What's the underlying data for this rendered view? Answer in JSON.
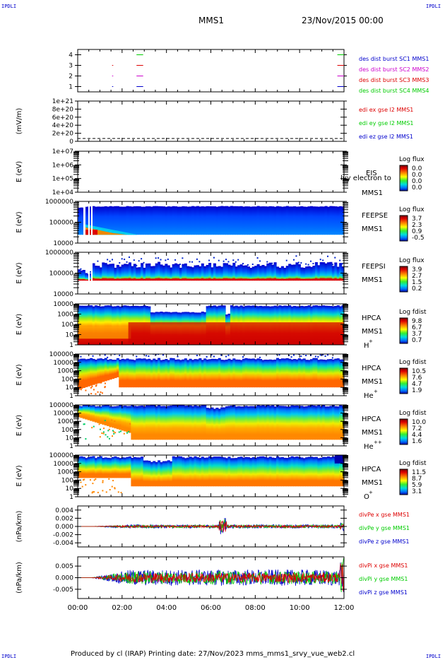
{
  "header": {
    "corner_tl": "IPDLI",
    "corner_tr": "IPDLI",
    "corner_bl": "IPDLI",
    "corner_br": "IPDLI",
    "spacecraft": "MMS1",
    "datetime": "23/Nov/2015 00:00"
  },
  "footer": {
    "text": "Produced by cl (IRAP)   Printing date: 27/Nov/2023   mms_mms1_srvy_vue_web2.cl"
  },
  "colors": {
    "red": "#dd0000",
    "green": "#00cc00",
    "blue": "#0000cc",
    "magenta": "#cc00cc"
  },
  "chart_data": [
    {
      "type": "line",
      "panel": "burst",
      "ylim": [
        0.5,
        4.5
      ],
      "yticks": [
        "1",
        "2",
        "3",
        "4"
      ],
      "legend": [
        {
          "label": "des dist burst SC1 MMS1",
          "color": "#0000cc"
        },
        {
          "label": "des dist burst SC2 MMS2",
          "color": "#cc00cc"
        },
        {
          "label": "des dist burst SC3 MMS3",
          "color": "#dd0000"
        },
        {
          "label": "des dist burst SC4 MMS4",
          "color": "#00cc00"
        }
      ],
      "series": [
        {
          "sc": 1,
          "segments": [
            [
              1.55,
              1.6
            ],
            [
              2.65,
              2.95
            ],
            [
              11.7,
              12.0
            ]
          ]
        },
        {
          "sc": 2,
          "segments": [
            [
              1.55,
              1.6
            ],
            [
              2.65,
              2.95
            ],
            [
              11.7,
              12.0
            ]
          ]
        },
        {
          "sc": 3,
          "segments": [
            [
              1.55,
              1.6
            ],
            [
              2.65,
              2.95
            ],
            [
              11.7,
              12.0
            ]
          ]
        },
        {
          "sc": 4,
          "segments": [
            [
              2.65,
              2.95
            ],
            [
              11.7,
              12.0
            ]
          ]
        }
      ]
    },
    {
      "type": "line",
      "panel": "edi",
      "ylabel": "(mV/m)",
      "ylim": [
        0,
        1e+21
      ],
      "yticks": [
        "0",
        "2e+20",
        "4e+20",
        "6e+20",
        "8e+20",
        "1e+21"
      ],
      "legend": [
        {
          "label": "edi ex gse l2 MMS1",
          "color": "#dd0000"
        },
        {
          "label": "edi ey gse l2 MMS1",
          "color": "#00cc00"
        },
        {
          "label": "edi ez gse l2 MMS1",
          "color": "#0000cc"
        }
      ]
    },
    {
      "type": "heatmap",
      "panel": "eis",
      "ylabel": "E (eV)",
      "yscale": "log",
      "ylim": [
        10000.0,
        10000000.0
      ],
      "yticks": [
        "1e+04",
        "1e+05",
        "1e+06",
        "1e+07"
      ],
      "labels": [
        "EIS",
        "MMS1"
      ],
      "overlay": "lvy electron to",
      "colorbar": {
        "title": "Log flux",
        "ticks": [
          "0.0",
          "0.0",
          "0.0",
          "0.0"
        ]
      }
    },
    {
      "type": "heatmap",
      "panel": "feepse",
      "ylabel": "E (eV)",
      "yscale": "log",
      "ylim": [
        10000.0,
        1000000.0
      ],
      "yticks": [
        "10000",
        "100000",
        "1000000"
      ],
      "labels": [
        "FEEPSE",
        "MMS1"
      ],
      "colorbar": {
        "title": "Log flux",
        "ticks": [
          "3.7",
          "2.3",
          "0.9",
          "-0.5"
        ]
      }
    },
    {
      "type": "heatmap",
      "panel": "feepsi",
      "ylabel": "E (eV)",
      "yscale": "log",
      "ylim": [
        10000.0,
        1000000.0
      ],
      "yticks": [
        "10000",
        "100000",
        "1000000"
      ],
      "labels": [
        "FEEPSI",
        "MMS1"
      ],
      "colorbar": {
        "title": "Log flux",
        "ticks": [
          "3.9",
          "2.7",
          "1.5",
          "0.2"
        ]
      }
    },
    {
      "type": "heatmap",
      "panel": "hpca_h",
      "ylabel": "E (eV)",
      "yscale": "log",
      "ylim": [
        1,
        10000.0
      ],
      "yticks": [
        "1",
        "10",
        "100",
        "1000",
        "10000"
      ],
      "labels": [
        "HPCA",
        "MMS1"
      ],
      "species": "H",
      "charge": "+",
      "colorbar": {
        "title": "Log fdist",
        "ticks": [
          "9.8",
          "6.7",
          "3.7",
          "0.7"
        ]
      }
    },
    {
      "type": "heatmap",
      "panel": "hpca_he1",
      "ylabel": "E (eV)",
      "yscale": "log",
      "ylim": [
        1,
        100000.0
      ],
      "yticks": [
        "1",
        "10",
        "100",
        "1000",
        "10000",
        "100000"
      ],
      "labels": [
        "HPCA",
        "MMS1"
      ],
      "species": "He",
      "charge": "+",
      "colorbar": {
        "title": "Log fdist",
        "ticks": [
          "10.5",
          "7.6",
          "4.7",
          "1.9"
        ]
      }
    },
    {
      "type": "heatmap",
      "panel": "hpca_he2",
      "ylabel": "E (eV)",
      "yscale": "log",
      "ylim": [
        1,
        100000.0
      ],
      "yticks": [
        "1",
        "10",
        "100",
        "1000",
        "10000",
        "100000"
      ],
      "labels": [
        "HPCA",
        "MMS1"
      ],
      "species": "He",
      "charge": "++",
      "colorbar": {
        "title": "Log fdist",
        "ticks": [
          "10.0",
          "7.2",
          "4.4",
          "1.6"
        ]
      }
    },
    {
      "type": "heatmap",
      "panel": "hpca_o",
      "ylabel": "E (eV)",
      "yscale": "log",
      "ylim": [
        1,
        100000.0
      ],
      "yticks": [
        "1",
        "10",
        "100",
        "1000",
        "10000",
        "100000"
      ],
      "labels": [
        "HPCA",
        "MMS1"
      ],
      "species": "O",
      "charge": "+",
      "colorbar": {
        "title": "Log fdist",
        "ticks": [
          "11.5",
          "8.7",
          "5.9",
          "3.1"
        ]
      }
    },
    {
      "type": "line",
      "panel": "divpe",
      "ylabel": "(nPa/km)",
      "ylim": [
        -0.005,
        0.005
      ],
      "yticks": [
        "0.004",
        "0.002",
        "0.000",
        "-0.002",
        "-0.004"
      ],
      "legend": [
        {
          "label": "divPe x gse MMS1",
          "color": "#dd0000"
        },
        {
          "label": "divPe y gse MMS1",
          "color": "#00cc00"
        },
        {
          "label": "divPe z gse MMS1",
          "color": "#0000cc"
        }
      ]
    },
    {
      "type": "line",
      "panel": "divpi",
      "ylabel": "(nPa/km)",
      "ylim": [
        -0.009,
        0.009
      ],
      "yticks": [
        "0.005",
        "0.000",
        "-0.005"
      ],
      "legend": [
        {
          "label": "divPi x gse MMS1",
          "color": "#dd0000"
        },
        {
          "label": "divPi y gse MMS1",
          "color": "#00cc00"
        },
        {
          "label": "divPi z gse MMS1",
          "color": "#0000cc"
        }
      ],
      "xlabel": "",
      "xlim": [
        0,
        12
      ],
      "xticks": [
        "00:00",
        "02:00",
        "04:00",
        "06:00",
        "08:00",
        "10:00",
        "12:00"
      ]
    }
  ]
}
